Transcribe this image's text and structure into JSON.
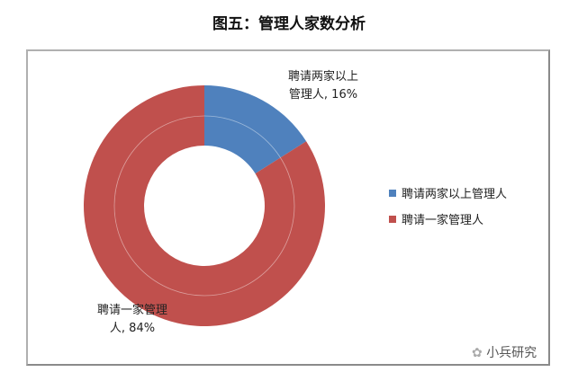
{
  "chart_data": {
    "type": "pie",
    "title": "图五：管理人家数分析",
    "donut": true,
    "slices": [
      {
        "name": "聘请两家以上管理人",
        "value": 16,
        "color": "#4f81bd",
        "label_line1": "聘请两家以上",
        "label_line2": "管理人, 16%"
      },
      {
        "name": "聘请一家管理人",
        "value": 84,
        "color": "#c0504d",
        "label_line1": "聘请一家管理",
        "label_line2": "人, 84%"
      }
    ],
    "legend_position": "right"
  },
  "watermark": "小兵研究"
}
